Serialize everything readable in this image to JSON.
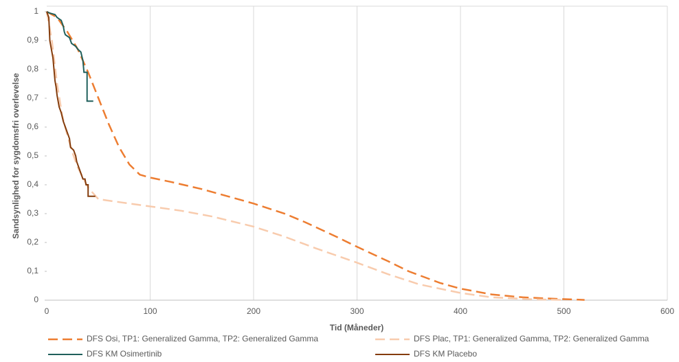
{
  "chart_data": {
    "type": "line",
    "xlabel": "Tid (Måneder)",
    "ylabel": "Sandsynlighed for sygdomsfri overlevelse",
    "xlim": [
      0,
      600
    ],
    "xticks": [
      0,
      100,
      200,
      300,
      400,
      500,
      600
    ],
    "ylim": [
      0,
      1
    ],
    "yticks": [
      0,
      {
        "value": 0.1,
        "label": "0,1"
      },
      {
        "value": 0.2,
        "label": "0,2"
      },
      {
        "value": 0.3,
        "label": "0,3"
      },
      {
        "value": 0.4,
        "label": "0,4"
      },
      {
        "value": 0.5,
        "label": "0,5"
      },
      {
        "value": 0.6,
        "label": "0,6"
      },
      {
        "value": 0.7,
        "label": "0,7"
      },
      {
        "value": 0.8,
        "label": "0,8"
      },
      {
        "value": 0.9,
        "label": "0,9"
      },
      1
    ],
    "grid": "x",
    "legend": "bottom",
    "series": [
      {
        "name": "DFS Osi, TP1: Generalized Gamma, TP2: Generalized Gamma",
        "color": "#ED7D31",
        "dashed": true,
        "x": [
          0,
          10,
          20,
          30,
          40,
          50,
          60,
          70,
          80,
          90,
          100,
          120,
          150,
          180,
          200,
          230,
          250,
          280,
          300,
          330,
          350,
          380,
          400,
          430,
          460,
          490,
          520
        ],
        "values": [
          1,
          0.98,
          0.93,
          0.87,
          0.79,
          0.7,
          0.61,
          0.53,
          0.47,
          0.435,
          0.425,
          0.41,
          0.385,
          0.355,
          0.335,
          0.3,
          0.27,
          0.22,
          0.185,
          0.135,
          0.1,
          0.06,
          0.04,
          0.02,
          0.01,
          0.005,
          0.001
        ]
      },
      {
        "name": "DFS Plac, TP1: Generalized Gamma, TP2: Generalized Gamma",
        "color": "#F8CBAD",
        "dashed": true,
        "x": [
          0,
          5,
          10,
          15,
          20,
          25,
          30,
          40,
          50,
          60,
          80,
          100,
          130,
          160,
          200,
          230,
          260,
          300,
          330,
          360,
          400,
          430,
          470,
          500
        ],
        "values": [
          1,
          0.9,
          0.75,
          0.64,
          0.57,
          0.51,
          0.46,
          0.39,
          0.35,
          0.345,
          0.335,
          0.325,
          0.31,
          0.29,
          0.255,
          0.22,
          0.18,
          0.13,
          0.09,
          0.055,
          0.025,
          0.01,
          0.003,
          0.001
        ]
      },
      {
        "name": "DFS KM Osimertinib",
        "color": "#1F5F5B",
        "dashed": false,
        "x": [
          0,
          3,
          8,
          10,
          14,
          16,
          17,
          18,
          22,
          24,
          28,
          30,
          33,
          35,
          36,
          39,
          39,
          45
        ],
        "values": [
          1,
          0.995,
          0.99,
          0.98,
          0.97,
          0.95,
          0.93,
          0.92,
          0.91,
          0.89,
          0.88,
          0.87,
          0.86,
          0.83,
          0.79,
          0.79,
          0.69,
          0.69
        ]
      },
      {
        "name": "DFS KM Placebo",
        "color": "#843C0C",
        "dashed": false,
        "x": [
          0,
          2,
          3,
          5,
          6,
          7,
          8,
          9,
          10,
          11,
          12,
          14,
          16,
          18,
          20,
          22,
          23,
          26,
          28,
          29,
          31,
          33,
          35,
          37,
          38,
          40,
          40,
          47
        ],
        "values": [
          1,
          0.98,
          0.9,
          0.86,
          0.84,
          0.8,
          0.76,
          0.74,
          0.71,
          0.69,
          0.67,
          0.65,
          0.62,
          0.6,
          0.58,
          0.56,
          0.53,
          0.52,
          0.5,
          0.48,
          0.46,
          0.44,
          0.42,
          0.42,
          0.4,
          0.4,
          0.36,
          0.36
        ]
      }
    ]
  }
}
